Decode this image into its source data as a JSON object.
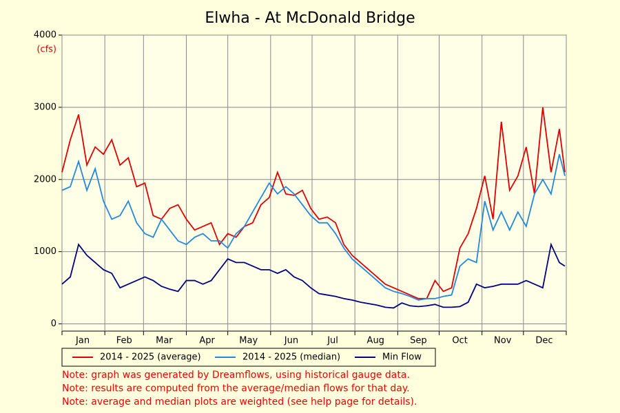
{
  "chart_data": {
    "type": "line",
    "title": "Elwha - At McDonald Bridge",
    "y_unit": "(cfs)",
    "x": [
      1,
      7,
      13,
      19,
      25,
      31,
      37,
      43,
      49,
      55,
      61,
      67,
      73,
      79,
      85,
      91,
      97,
      103,
      109,
      115,
      121,
      127,
      133,
      139,
      145,
      151,
      157,
      163,
      169,
      175,
      181,
      187,
      193,
      199,
      205,
      211,
      217,
      223,
      229,
      235,
      241,
      247,
      253,
      259,
      265,
      271,
      277,
      283,
      289,
      295,
      301,
      307,
      313,
      319,
      325,
      331,
      337,
      343,
      349,
      355,
      361,
      365
    ],
    "xlim": [
      1,
      366
    ],
    "xticks": [
      1,
      32,
      60,
      91,
      121,
      152,
      182,
      213,
      244,
      274,
      305,
      335,
      366
    ],
    "month_labels": [
      {
        "value": 16,
        "label": "Jan"
      },
      {
        "value": 46,
        "label": "Feb"
      },
      {
        "value": 75,
        "label": "Mar"
      },
      {
        "value": 106,
        "label": "Apr"
      },
      {
        "value": 136,
        "label": "May"
      },
      {
        "value": 167,
        "label": "Jun"
      },
      {
        "value": 197,
        "label": "Jul"
      },
      {
        "value": 228,
        "label": "Aug"
      },
      {
        "value": 259,
        "label": "Sep"
      },
      {
        "value": 289,
        "label": "Oct"
      },
      {
        "value": 320,
        "label": "Nov"
      },
      {
        "value": 350,
        "label": "Dec"
      }
    ],
    "ylim": [
      -100,
      4000
    ],
    "yticks": [
      0,
      1000,
      2000,
      3000,
      4000
    ],
    "grid": true,
    "series": [
      {
        "name": "2014 - 2025 (average)",
        "color": "#dd0000",
        "values": [
          2100,
          2550,
          2900,
          2200,
          2450,
          2350,
          2550,
          2200,
          2300,
          1900,
          1950,
          1500,
          1450,
          1600,
          1650,
          1450,
          1300,
          1350,
          1400,
          1100,
          1250,
          1200,
          1350,
          1400,
          1650,
          1750,
          2100,
          1800,
          1780,
          1850,
          1600,
          1450,
          1480,
          1400,
          1100,
          950,
          850,
          750,
          650,
          550,
          500,
          450,
          400,
          350,
          350,
          600,
          450,
          500,
          1050,
          1250,
          1600,
          2050,
          1450,
          2800,
          1850,
          2050,
          2450,
          1800,
          3000,
          2100,
          2700,
          2100
        ]
      },
      {
        "name": "2014 - 2025 (median)",
        "color": "#2288dd",
        "values": [
          1850,
          1900,
          2250,
          1850,
          2150,
          1700,
          1450,
          1500,
          1700,
          1400,
          1250,
          1200,
          1450,
          1300,
          1150,
          1100,
          1200,
          1250,
          1150,
          1150,
          1050,
          1250,
          1350,
          1550,
          1750,
          1950,
          1800,
          1900,
          1800,
          1650,
          1500,
          1400,
          1400,
          1250,
          1050,
          900,
          800,
          700,
          600,
          500,
          450,
          420,
          380,
          330,
          350,
          350,
          380,
          400,
          800,
          900,
          850,
          1700,
          1300,
          1550,
          1300,
          1550,
          1350,
          1800,
          2000,
          1800,
          2350,
          2050
        ]
      },
      {
        "name": "Min Flow",
        "color": "#000080",
        "values": [
          550,
          650,
          1100,
          950,
          850,
          750,
          700,
          500,
          550,
          600,
          650,
          600,
          520,
          480,
          450,
          600,
          600,
          550,
          600,
          750,
          900,
          850,
          850,
          800,
          750,
          750,
          700,
          750,
          650,
          600,
          500,
          420,
          400,
          380,
          350,
          330,
          300,
          280,
          260,
          230,
          220,
          290,
          250,
          240,
          250,
          270,
          230,
          230,
          240,
          300,
          550,
          500,
          520,
          550,
          550,
          550,
          600,
          550,
          500,
          1100,
          850,
          800
        ]
      }
    ],
    "notes": [
      "Note: graph was generated by Dreamflows, using historical gauge data.",
      "Note: results are computed from the average/median flows for that day.",
      "Note: average and median plots are weighted (see help page for details)."
    ]
  }
}
